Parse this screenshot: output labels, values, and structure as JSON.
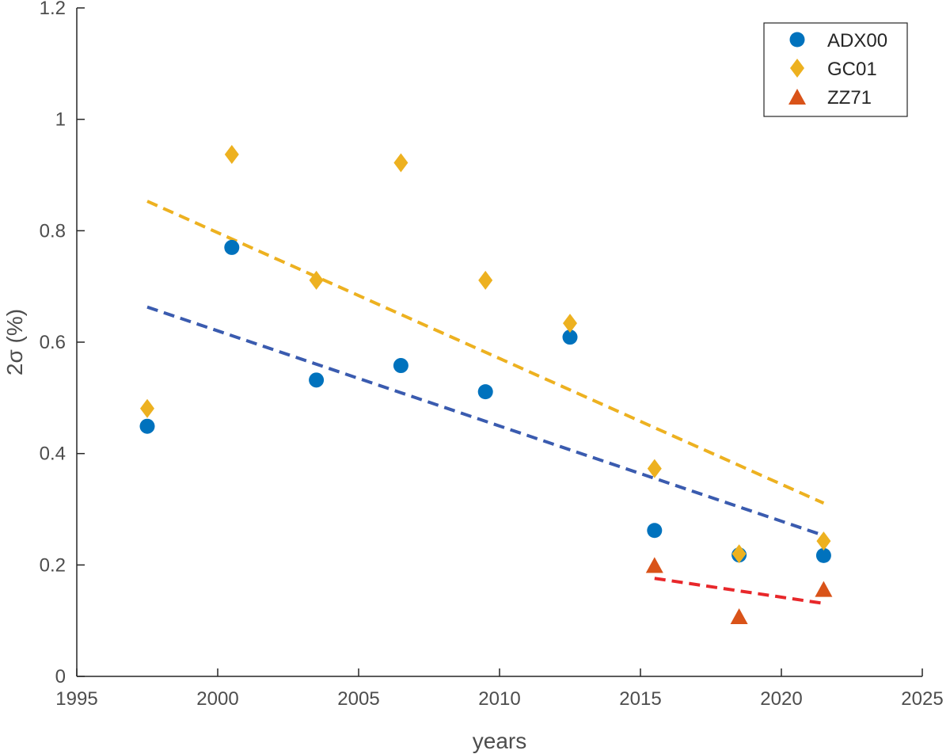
{
  "chart_data": {
    "type": "scatter",
    "xlabel": "years",
    "ylabel": "2σ (%)",
    "xlim": [
      1995,
      2025
    ],
    "ylim": [
      0,
      1.2
    ],
    "xticks": [
      "1995",
      "2000",
      "2005",
      "2010",
      "2015",
      "2020",
      "2025"
    ],
    "yticks": [
      "0",
      "0.2",
      "0.4",
      "0.6",
      "0.8",
      "1",
      "1.2"
    ],
    "grid": false,
    "legend_position": "top-right",
    "series": [
      {
        "name": "ADX00",
        "marker": "circle",
        "color": "#0072BD",
        "x": [
          1997.5,
          2000.5,
          2003.5,
          2006.5,
          2009.5,
          2012.5,
          2015.5,
          2018.5,
          2021.5
        ],
        "y": [
          0.449,
          0.77,
          0.532,
          0.558,
          0.511,
          0.609,
          0.262,
          0.218,
          0.217
        ]
      },
      {
        "name": "GC01",
        "marker": "diamond",
        "color": "#EDB120",
        "x": [
          1997.5,
          2000.5,
          2003.5,
          2006.5,
          2009.5,
          2012.5,
          2015.5,
          2018.5,
          2021.5
        ],
        "y": [
          0.481,
          0.937,
          0.711,
          0.922,
          0.711,
          0.634,
          0.373,
          0.22,
          0.243
        ]
      },
      {
        "name": "ZZ71",
        "marker": "triangle",
        "color": "#D95319",
        "x": [
          2015.5,
          2018.5,
          2021.5
        ],
        "y": [
          0.2,
          0.108,
          0.157
        ]
      }
    ],
    "trend_lines": [
      {
        "color": "#3A5BAF",
        "x": [
          1997.5,
          2021.5
        ],
        "y": [
          0.663,
          0.253
        ]
      },
      {
        "color": "#EDB120",
        "x": [
          1997.5,
          2021.5
        ],
        "y": [
          0.853,
          0.311
        ]
      },
      {
        "color": "#E8272A",
        "x": [
          2015.5,
          2021.5
        ],
        "y": [
          0.176,
          0.131
        ]
      }
    ]
  }
}
